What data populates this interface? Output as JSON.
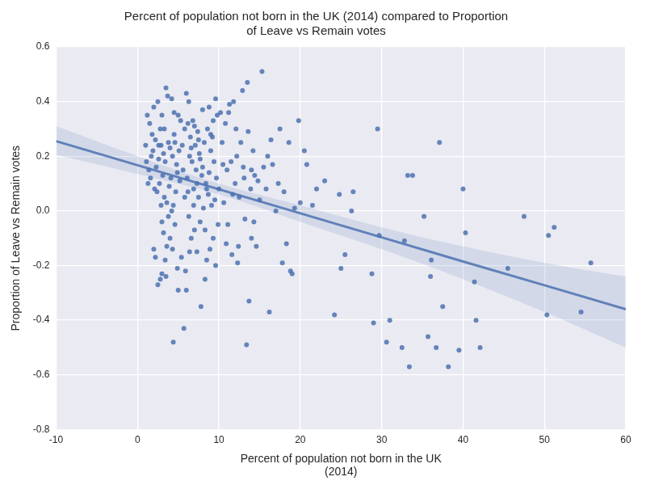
{
  "chart_data": {
    "type": "scatter",
    "title": [
      "Percent of population not born in the UK (2014) compared to Proportion",
      "of Leave vs Remain votes"
    ],
    "x_label": [
      "Percent of population not born in the UK",
      "(2014)"
    ],
    "y_label": "Proportion of Leave vs Remain votes",
    "xlim": [
      -10,
      60
    ],
    "xticks": [
      -10,
      0,
      10,
      20,
      30,
      40,
      50,
      60
    ],
    "ylim": [
      -0.8,
      0.6
    ],
    "yticks": [
      -0.8,
      -0.6,
      -0.4,
      -0.2,
      {
        "value": 0,
        "label": "0.0"
      },
      0.2,
      0.4,
      0.6
    ],
    "grid": true,
    "series": [
      {
        "type": "scatter",
        "color": "#4c72b0",
        "marker": "circle",
        "x": [
          1.0,
          1.2,
          1.5,
          1.8,
          2.0,
          2.2,
          2.5,
          2.8,
          3.0,
          3.5,
          3.7,
          4.2,
          4.5,
          5.0,
          5.3,
          1.1,
          1.4,
          1.9,
          2.3,
          2.6,
          2.9,
          3.2,
          3.4,
          3.8,
          4.0,
          4.3,
          4.6,
          4.8,
          5.1,
          5.5,
          1.6,
          2.1,
          2.4,
          2.7,
          3.1,
          3.3,
          3.6,
          3.9,
          4.1,
          4.4,
          4.7,
          4.9,
          5.2,
          5.6,
          2.0,
          2.2,
          2.5,
          2.8,
          3.0,
          3.2,
          3.4,
          3.6,
          3.8,
          4.0,
          4.3,
          4.4,
          4.6,
          4.9,
          5.0,
          5.4,
          5.7,
          3.0,
          3.5,
          4.2,
          2.6,
          3.3,
          4.5,
          1.3,
          1.7,
          2.9,
          5.8,
          6.0,
          6.1,
          6.2,
          6.3,
          6.4,
          6.5,
          6.6,
          6.7,
          6.8,
          6.9,
          7.0,
          7.1,
          7.2,
          7.3,
          7.4,
          7.5,
          7.6,
          7.7,
          7.8,
          7.9,
          8.0,
          8.1,
          8.2,
          8.3,
          8.4,
          8.5,
          8.6,
          8.7,
          8.8,
          8.9,
          9.0,
          9.1,
          9.2,
          9.3,
          9.4,
          9.5,
          9.6,
          9.7,
          9.8,
          9.9,
          6.0,
          6.3,
          6.9,
          7.3,
          5.9,
          6.2,
          8.0,
          8.5,
          9.0,
          5.8,
          6.6,
          7.0,
          7.7,
          8.3,
          8.8,
          9.3,
          9.6,
          6.4,
          7.5,
          10.0,
          10.2,
          10.4,
          10.6,
          10.8,
          11.0,
          11.1,
          11.3,
          11.5,
          11.6,
          11.8,
          12.0,
          12.2,
          12.4,
          12.5,
          12.7,
          12.9,
          13.0,
          13.2,
          13.4,
          13.5,
          13.6,
          13.7,
          13.9,
          14.0,
          14.2,
          14.4,
          14.6,
          14.8,
          15.0,
          15.3,
          15.5,
          15.8,
          16.0,
          16.2,
          16.4,
          12.3,
          11.2,
          10.5,
          14.0,
          13.1,
          12.1,
          14.3,
          11.7,
          10.9,
          16.6,
          17.0,
          17.3,
          17.5,
          17.8,
          18.0,
          18.3,
          18.6,
          18.8,
          19.0,
          19.3,
          19.8,
          20.0,
          20.5,
          20.8,
          21.5,
          22.0,
          23.0,
          24.2,
          24.8,
          25.0,
          25.5,
          26.3,
          26.5,
          28.8,
          29.0,
          29.5,
          29.7,
          30.6,
          31.0,
          32.5,
          32.8,
          33.2,
          33.4,
          33.8,
          35.2,
          35.7,
          36.0,
          36.1,
          36.7,
          37.1,
          37.5,
          38.2,
          39.5,
          40.0,
          40.3,
          41.4,
          41.6,
          42.1,
          45.5,
          47.5,
          50.3,
          50.5,
          51.2,
          54.5,
          55.7
        ],
        "values": [
          0.24,
          0.35,
          0.32,
          0.28,
          0.38,
          0.26,
          0.4,
          0.3,
          0.35,
          0.45,
          0.42,
          0.41,
          0.36,
          0.35,
          0.33,
          0.18,
          0.15,
          0.22,
          0.16,
          0.19,
          0.24,
          0.21,
          0.18,
          0.25,
          0.23,
          0.2,
          0.25,
          0.17,
          0.22,
          0.24,
          0.12,
          0.08,
          0.07,
          0.1,
          0.13,
          0.05,
          0.03,
          0.09,
          0.12,
          0.02,
          0.07,
          0.14,
          0.11,
          0.15,
          -0.14,
          -0.17,
          -0.27,
          -0.25,
          -0.04,
          -0.08,
          -0.18,
          -0.13,
          -0.02,
          -0.1,
          -0.14,
          -0.48,
          -0.05,
          -0.21,
          -0.29,
          -0.17,
          -0.43,
          -0.23,
          -0.24,
          0.0,
          0.24,
          0.3,
          0.28,
          0.1,
          0.2,
          0.02,
          0.05,
          0.43,
          0.12,
          0.32,
          -0.02,
          0.2,
          0.27,
          -0.1,
          0.18,
          0.33,
          0.08,
          -0.07,
          0.24,
          0.15,
          -0.15,
          0.29,
          0.05,
          0.21,
          -0.04,
          -0.35,
          0.13,
          0.37,
          0.01,
          0.25,
          -0.25,
          0.1,
          -0.18,
          0.3,
          0.06,
          0.38,
          -0.14,
          0.22,
          0.02,
          0.27,
          -0.1,
          0.18,
          0.04,
          0.41,
          0.12,
          0.35,
          -0.05,
          -0.29,
          0.4,
          0.02,
          0.1,
          -0.22,
          0.07,
          0.16,
          0.08,
          0.28,
          0.3,
          0.23,
          0.31,
          0.19,
          -0.07,
          0.14,
          0.33,
          -0.2,
          -0.15,
          0.26,
          0.08,
          0.36,
          0.25,
          0.03,
          0.32,
          0.15,
          -0.05,
          0.39,
          0.18,
          -0.16,
          0.4,
          0.1,
          0.2,
          -0.13,
          0.05,
          0.25,
          0.44,
          0.16,
          -0.03,
          -0.49,
          0.47,
          0.29,
          -0.33,
          0.08,
          -0.1,
          0.22,
          0.13,
          -0.13,
          0.11,
          0.04,
          0.51,
          0.16,
          0.08,
          0.2,
          -0.37,
          0.26,
          -0.19,
          0.36,
          0.17,
          0.15,
          0.12,
          0.3,
          -0.04,
          0.06,
          -0.12,
          0.17,
          0.0,
          0.1,
          0.3,
          -0.19,
          0.07,
          -0.12,
          0.25,
          -0.22,
          -0.23,
          0.01,
          0.33,
          0.03,
          0.22,
          0.17,
          0.02,
          0.08,
          0.11,
          -0.38,
          0.06,
          -0.21,
          -0.16,
          0.0,
          0.07,
          -0.23,
          -0.41,
          0.3,
          -0.09,
          -0.48,
          -0.4,
          -0.5,
          -0.11,
          0.13,
          -0.57,
          0.13,
          -0.02,
          -0.46,
          -0.24,
          -0.18,
          -0.5,
          0.25,
          -0.35,
          -0.57,
          -0.51,
          0.08,
          -0.08,
          -0.26,
          -0.4,
          -0.5,
          -0.21,
          -0.02,
          -0.38,
          -0.09,
          -0.06,
          -0.37,
          -0.19
        ]
      },
      {
        "type": "line",
        "color": "#4c72b0",
        "line_style": "solid",
        "x": [
          -10,
          0,
          10,
          20,
          30,
          40,
          50,
          60
        ],
        "values": [
          0.255,
          0.167,
          0.079,
          -0.009,
          -0.097,
          -0.185,
          -0.272,
          -0.36
        ],
        "ci_lower": [
          0.205,
          0.135,
          0.06,
          -0.04,
          -0.14,
          -0.25,
          -0.37,
          -0.5
        ],
        "ci_upper": [
          0.31,
          0.2,
          0.1,
          0.02,
          -0.06,
          -0.13,
          -0.19,
          -0.24
        ]
      }
    ]
  }
}
